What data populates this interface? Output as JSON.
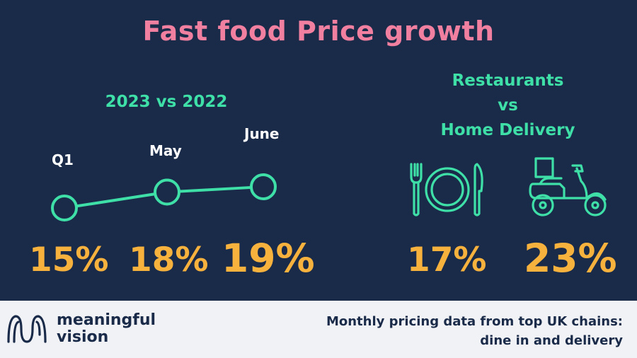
{
  "title": "Fast food Price growth",
  "left": {
    "subtitle": "2023 vs 2022"
  },
  "right": {
    "subtitle_lines": [
      "Restaurants",
      "vs",
      "Home Delivery"
    ]
  },
  "icons": {
    "restaurant": "cutlery-plate-icon",
    "delivery": "scooter-delivery-icon"
  },
  "colors": {
    "background": "#1a2b4a",
    "title": "#f07fa0",
    "accent_green": "#3fdfa8",
    "value_orange": "#f7b23d",
    "footer_bg": "#f1f2f5"
  },
  "chart_data": [
    {
      "type": "line",
      "title": "2023 vs 2022",
      "categories": [
        "Q1",
        "May",
        "June"
      ],
      "values": [
        15,
        18,
        19
      ],
      "value_labels": [
        "15%",
        "18%",
        "19%"
      ]
    },
    {
      "type": "bar",
      "title": "Restaurants vs Home Delivery",
      "categories": [
        "Restaurants",
        "Home Delivery"
      ],
      "values": [
        17,
        23
      ],
      "value_labels": [
        "17%",
        "23%"
      ]
    }
  ],
  "footer": {
    "brand_line1": "meaningful",
    "brand_line2": "vision",
    "caption_line1": "Monthly pricing data from top UK chains:",
    "caption_line2": "dine in and delivery"
  }
}
